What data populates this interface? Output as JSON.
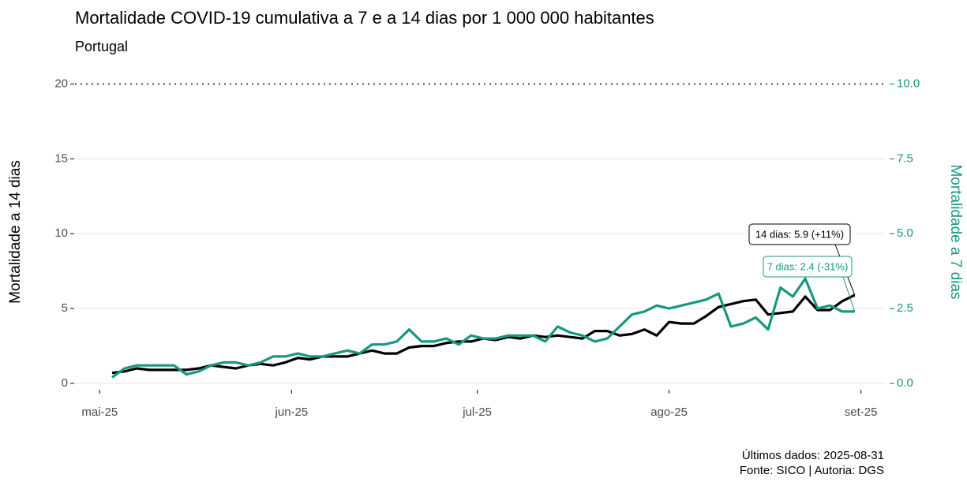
{
  "chart_data": {
    "type": "line",
    "title": "Mortalidade COVID-19 cumulativa a 7 e a 14 dias por 1 000 000 habitantes",
    "subtitle": "Portugal",
    "y_label": "Mortalidade a 14 dias",
    "y2_label": "Mortalidade a 7 dias",
    "caption": [
      "Últimos dados: 2025-08-31",
      "Fonte: SICO | Autoria: DGS"
    ],
    "x": [
      2,
      4,
      6,
      8,
      10,
      12,
      14,
      16,
      18,
      20,
      22,
      24,
      26,
      28,
      30,
      32,
      34,
      36,
      38,
      40,
      42,
      44,
      46,
      48,
      50,
      52,
      54,
      56,
      58,
      60,
      62,
      64,
      66,
      68,
      70,
      72,
      74,
      76,
      78,
      80,
      82,
      84,
      86,
      88,
      90,
      92,
      94,
      96,
      98,
      100,
      102,
      104,
      106,
      108,
      110,
      112,
      114,
      116,
      118,
      120,
      122
    ],
    "xlim": [
      -4,
      127
    ],
    "xticks": [
      {
        "value": 0,
        "label": "mai-25"
      },
      {
        "value": 31,
        "label": "jun-25"
      },
      {
        "value": 61,
        "label": "jul-25"
      },
      {
        "value": 92,
        "label": "ago-25"
      },
      {
        "value": 123,
        "label": "set-25"
      }
    ],
    "ylim": [
      0,
      21.4
    ],
    "yticks": [
      0,
      5,
      10,
      15,
      20
    ],
    "y2lim": [
      0,
      10.7
    ],
    "y2ticks": [
      {
        "value": 0,
        "label": "0.0"
      },
      2.5,
      {
        "value": 5,
        "label": "5.0"
      },
      7.5,
      {
        "value": 10,
        "label": "10.0"
      }
    ],
    "grid": true,
    "series": [
      {
        "name": "14 dias",
        "color": "#000000",
        "values": [
          0.7,
          0.8,
          1.0,
          0.9,
          0.9,
          0.9,
          0.9,
          1.0,
          1.2,
          1.1,
          1.0,
          1.2,
          1.3,
          1.2,
          1.4,
          1.7,
          1.6,
          1.8,
          1.8,
          1.8,
          2.0,
          2.2,
          2.0,
          2.0,
          2.4,
          2.5,
          2.5,
          2.7,
          2.8,
          2.8,
          3.0,
          2.9,
          3.1,
          3.0,
          3.2,
          3.1,
          3.2,
          3.1,
          3.0,
          3.5,
          3.5,
          3.2,
          3.3,
          3.6,
          3.2,
          4.1,
          4.0,
          4.0,
          4.5,
          5.1,
          5.3,
          5.5,
          5.6,
          4.6,
          4.7,
          4.8,
          5.8,
          4.9,
          4.9,
          5.5,
          5.9
        ]
      },
      {
        "name": "7 dias",
        "color": "#17987f",
        "axis": "y2",
        "values": [
          0.2,
          0.5,
          0.6,
          0.6,
          0.6,
          0.6,
          0.3,
          0.4,
          0.6,
          0.7,
          0.7,
          0.6,
          0.7,
          0.9,
          0.9,
          1.0,
          0.9,
          0.9,
          1.0,
          1.1,
          1.0,
          1.3,
          1.3,
          1.4,
          1.8,
          1.4,
          1.4,
          1.5,
          1.3,
          1.6,
          1.5,
          1.5,
          1.6,
          1.6,
          1.6,
          1.4,
          1.9,
          1.7,
          1.6,
          1.4,
          1.5,
          1.9,
          2.3,
          2.4,
          2.6,
          2.5,
          2.6,
          2.7,
          2.8,
          3.0,
          1.9,
          2.0,
          2.2,
          1.8,
          3.2,
          2.9,
          3.5,
          2.5,
          2.6,
          2.4,
          2.4
        ]
      }
    ],
    "annotations": [
      "14 dias: 5.9 (+11%)",
      "7 dias: 2.4 (-31%)"
    ]
  }
}
